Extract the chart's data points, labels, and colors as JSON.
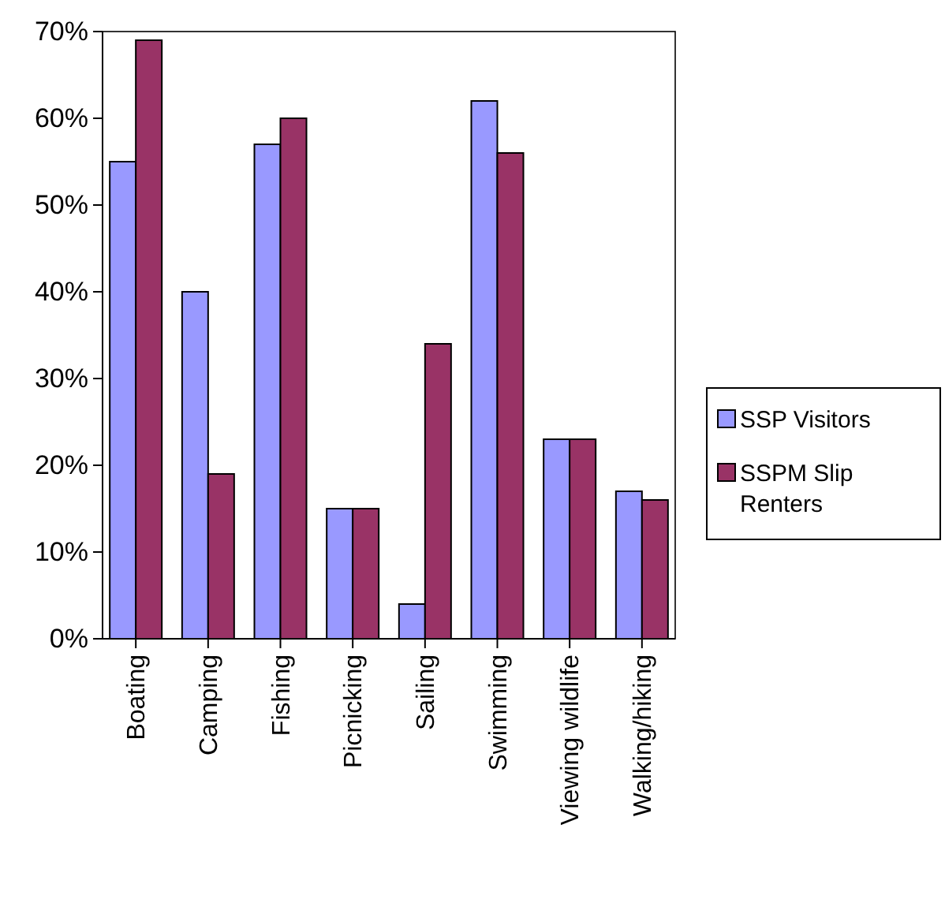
{
  "chart_data": {
    "type": "bar",
    "categories": [
      "Boating",
      "Camping",
      "Fishing",
      "Picnicking",
      "Sailing",
      "Swimming",
      "Viewing wildlife",
      "Walking/hiking"
    ],
    "series": [
      {
        "name": "SSP Visitors",
        "color": "#9999ff",
        "values": [
          55,
          40,
          57,
          15,
          4,
          62,
          23,
          17
        ]
      },
      {
        "name": "SSPM Slip Renters",
        "color": "#993366",
        "values": [
          69,
          19,
          60,
          15,
          34,
          56,
          23,
          16
        ]
      }
    ],
    "ylim": [
      0,
      70
    ],
    "yticks": [
      {
        "value": 0,
        "label": "0%"
      },
      {
        "value": 10,
        "label": "10%"
      },
      {
        "value": 20,
        "label": "20%"
      },
      {
        "value": 30,
        "label": "30%"
      },
      {
        "value": 40,
        "label": "40%"
      },
      {
        "value": 50,
        "label": "50%"
      },
      {
        "value": 60,
        "label": "60%"
      },
      {
        "value": 70,
        "label": "70%"
      }
    ],
    "grid": false,
    "legend": "right"
  }
}
